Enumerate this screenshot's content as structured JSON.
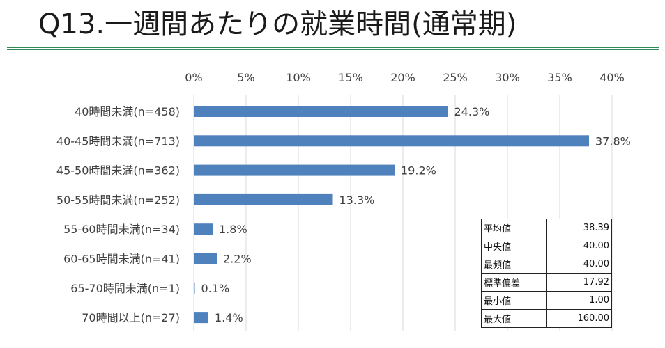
{
  "page": {
    "title": "Q13.一週間あたりの就業時間(通常期)"
  },
  "chart_data": {
    "type": "bar",
    "orientation": "horizontal",
    "title": "",
    "xlabel": "",
    "ylabel": "",
    "xlim": [
      0,
      40
    ],
    "x_ticks": [
      "0%",
      "5%",
      "10%",
      "15%",
      "20%",
      "25%",
      "30%",
      "35%",
      "40%"
    ],
    "x_axis_position": "top",
    "grid": true,
    "categories": [
      "40時間未満(n=458)",
      "40-45時間未満(n=713)",
      "45-50時間未満(n=362)",
      "50-55時間未満(n=252)",
      "55-60時間未満(n=34)",
      "60-65時間未満(n=41)",
      "65-70時間未満(n=1)",
      "70時間以上(n=27)"
    ],
    "values": [
      24.3,
      37.8,
      19.2,
      13.3,
      1.8,
      2.2,
      0.1,
      1.4
    ],
    "data_labels": [
      "24.3%",
      "37.8%",
      "19.2%",
      "13.3%",
      "1.8%",
      "2.2%",
      "0.1%",
      "1.4%"
    ],
    "bar_color": "#4f81bd"
  },
  "stats_table": {
    "rows": [
      {
        "label": "平均値",
        "value": "38.39"
      },
      {
        "label": "中央値",
        "value": "40.00"
      },
      {
        "label": "最頻値",
        "value": "40.00"
      },
      {
        "label": "標準偏差",
        "value": "17.92"
      },
      {
        "label": "最小値",
        "value": "1.00"
      },
      {
        "label": "最大値",
        "value": "160.00"
      }
    ]
  },
  "colors": {
    "accent_rule": "#2e8b57",
    "bar": "#4f81bd",
    "grid": "#d9d9d9"
  }
}
